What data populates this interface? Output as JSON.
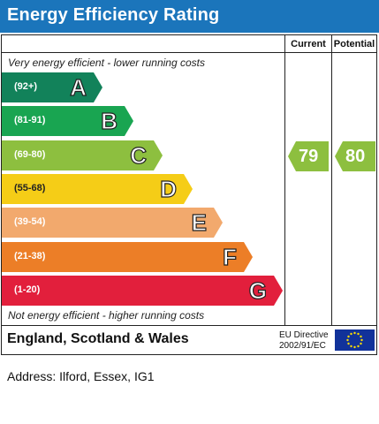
{
  "header": {
    "title": "Energy Efficiency Rating",
    "color": "#1b75bb"
  },
  "columns": {
    "current": "Current",
    "potential": "Potential"
  },
  "notes": {
    "top": "Very energy efficient - lower running costs",
    "bottom": "Not energy efficient - higher running costs"
  },
  "bands": [
    {
      "range": "(92+)",
      "letter": "A",
      "color": "#12825a"
    },
    {
      "range": "(81-91)",
      "letter": "B",
      "color": "#19a551"
    },
    {
      "range": "(69-80)",
      "letter": "C",
      "color": "#8dbf3f"
    },
    {
      "range": "(55-68)",
      "letter": "D",
      "color": "#f5cd17"
    },
    {
      "range": "(39-54)",
      "letter": "E",
      "color": "#f2a96d"
    },
    {
      "range": "(21-38)",
      "letter": "F",
      "color": "#ec7e27"
    },
    {
      "range": "(1-20)",
      "letter": "G",
      "color": "#e21f3c"
    }
  ],
  "ratings": {
    "current": {
      "value": "79",
      "band": "C",
      "color": "#8dbf3f"
    },
    "potential": {
      "value": "80",
      "band": "C",
      "color": "#8dbf3f"
    }
  },
  "footer": {
    "region": "England, Scotland & Wales",
    "eu_line1": "EU Directive",
    "eu_line2": "2002/91/EC",
    "flag_icon": "eu-flag-icon"
  },
  "address": "Address: Ilford, Essex, IG1"
}
